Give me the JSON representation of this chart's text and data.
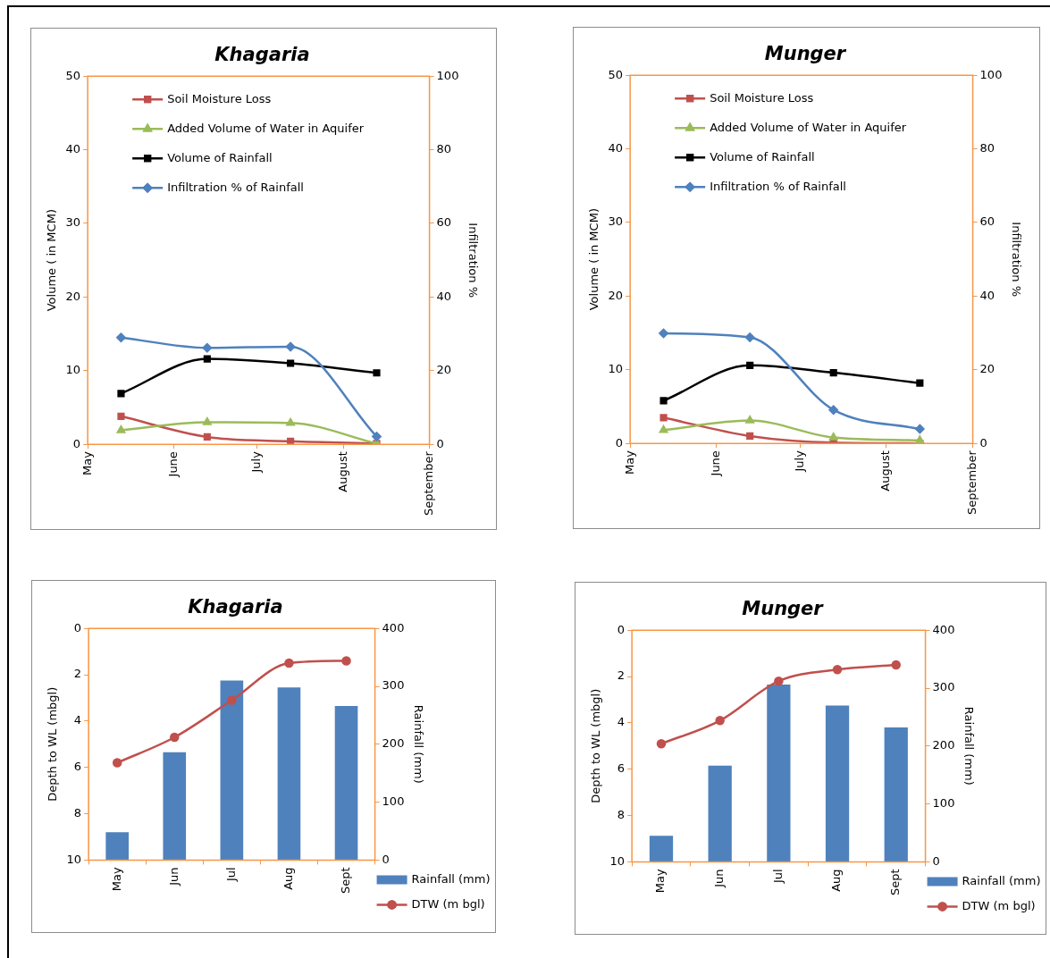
{
  "chart_data": [
    {
      "type": "line",
      "title": "Khagaria",
      "ylabel": "Volume ( in MCM)",
      "y2label": "Infiltration %",
      "x": [
        "--05-13",
        "--06-13",
        "--07-13",
        "--08-13"
      ],
      "xlim": [
        "--05-01",
        "--09-01"
      ],
      "xticks": [
        {
          "value": "--05-01",
          "label": "May"
        },
        {
          "value": "--06-01",
          "label": "June"
        },
        {
          "value": "--07-01",
          "label": "July"
        },
        {
          "value": "--08-01",
          "label": "August"
        },
        {
          "value": "--09-01",
          "label": "September"
        }
      ],
      "ylim": [
        0,
        50
      ],
      "yticks": [
        0,
        10,
        20,
        30,
        40,
        50
      ],
      "y2lim": [
        0,
        100
      ],
      "y2ticks": [
        0,
        20,
        40,
        60,
        80,
        100
      ],
      "legend": "top left",
      "series": [
        {
          "name": "Soil Moisture Loss",
          "color": "#c0504d",
          "marker": "square",
          "values": [
            3.8,
            1.0,
            0.4,
            0.1
          ]
        },
        {
          "name": "Added Volume of Water in Aquifer",
          "color": "#9bbb59",
          "marker": "triangle",
          "values": [
            1.9,
            3.0,
            2.9,
            0.1
          ]
        },
        {
          "name": "Volume of Rainfall",
          "color": "#000000",
          "marker": "square",
          "values": [
            6.9,
            11.6,
            11.0,
            9.7
          ]
        },
        {
          "name": "Infiltration % of Rainfall",
          "color": "#4f81bd",
          "marker": "diamond",
          "axis": "y2",
          "values": [
            29,
            26.2,
            26.5,
            2.1
          ]
        }
      ]
    },
    {
      "type": "line",
      "title": "Munger",
      "ylabel": "Volume ( in MCM)",
      "y2label": "Infiltration %",
      "x": [
        "--05-13",
        "--06-13",
        "--07-13",
        "--08-13"
      ],
      "xlim": [
        "--05-01",
        "--09-01"
      ],
      "xticks": [
        {
          "value": "--05-01",
          "label": "May"
        },
        {
          "value": "--06-01",
          "label": "June"
        },
        {
          "value": "--07-01",
          "label": "July"
        },
        {
          "value": "--08-01",
          "label": "August"
        },
        {
          "value": "--09-01",
          "label": "September"
        }
      ],
      "ylim": [
        0,
        50
      ],
      "yticks": [
        0,
        10,
        20,
        30,
        40,
        50
      ],
      "y2lim": [
        0,
        100
      ],
      "y2ticks": [
        0,
        20,
        40,
        60,
        80,
        100
      ],
      "legend": "top left",
      "series": [
        {
          "name": "Soil Moisture Loss",
          "color": "#c0504d",
          "marker": "square",
          "values": [
            3.5,
            1.0,
            0.1,
            0.0
          ]
        },
        {
          "name": "Added Volume of Water in Aquifer",
          "color": "#9bbb59",
          "marker": "triangle",
          "values": [
            1.8,
            3.1,
            0.8,
            0.4
          ]
        },
        {
          "name": "Volume of Rainfall",
          "color": "#000000",
          "marker": "square",
          "values": [
            5.8,
            10.6,
            9.6,
            8.2
          ]
        },
        {
          "name": "Infiltration % of Rainfall",
          "color": "#4f81bd",
          "marker": "diamond",
          "axis": "y2",
          "values": [
            29.9,
            28.8,
            9.1,
            3.9
          ]
        }
      ]
    },
    {
      "type": "bar",
      "title": "Khagaria",
      "ylabel": "Depth to WL (mbgl)",
      "y2label": "Rainfall (mm)",
      "categories": [
        "May",
        "Jun",
        "Jul",
        "Aug",
        "Sept"
      ],
      "ylim": [
        10,
        0
      ],
      "yticks": [
        0,
        2,
        4,
        6,
        8,
        10
      ],
      "y2lim": [
        0,
        400
      ],
      "y2ticks": [
        0,
        100,
        200,
        300,
        400
      ],
      "legend": "bottom right",
      "series": [
        {
          "name": "Rainfall (mm)",
          "type": "bar",
          "color": "#4f81bd",
          "axis": "y2",
          "values": [
            48,
            186,
            310,
            298,
            266
          ]
        },
        {
          "name": "DTW (m bgl)",
          "type": "line",
          "color": "#c0504d",
          "marker": "circle",
          "values": [
            5.8,
            4.7,
            3.1,
            1.5,
            1.4
          ]
        }
      ]
    },
    {
      "type": "bar",
      "title": "Munger",
      "ylabel": "Depth to WL (mbgl)",
      "y2label": "Rainfall (mm)",
      "categories": [
        "May",
        "Jun",
        "Jul",
        "Aug",
        "Sept"
      ],
      "ylim": [
        10,
        0
      ],
      "yticks": [
        0,
        2,
        4,
        6,
        8,
        10
      ],
      "y2lim": [
        0,
        400
      ],
      "y2ticks": [
        0,
        100,
        200,
        300,
        400
      ],
      "legend": "bottom right",
      "series": [
        {
          "name": "Rainfall (mm)",
          "type": "bar",
          "color": "#4f81bd",
          "axis": "y2",
          "values": [
            45,
            166,
            306,
            270,
            232
          ]
        },
        {
          "name": "DTW (m bgl)",
          "type": "line",
          "color": "#c0504d",
          "marker": "circle",
          "values": [
            4.9,
            3.9,
            2.2,
            1.7,
            1.5
          ]
        }
      ]
    }
  ]
}
